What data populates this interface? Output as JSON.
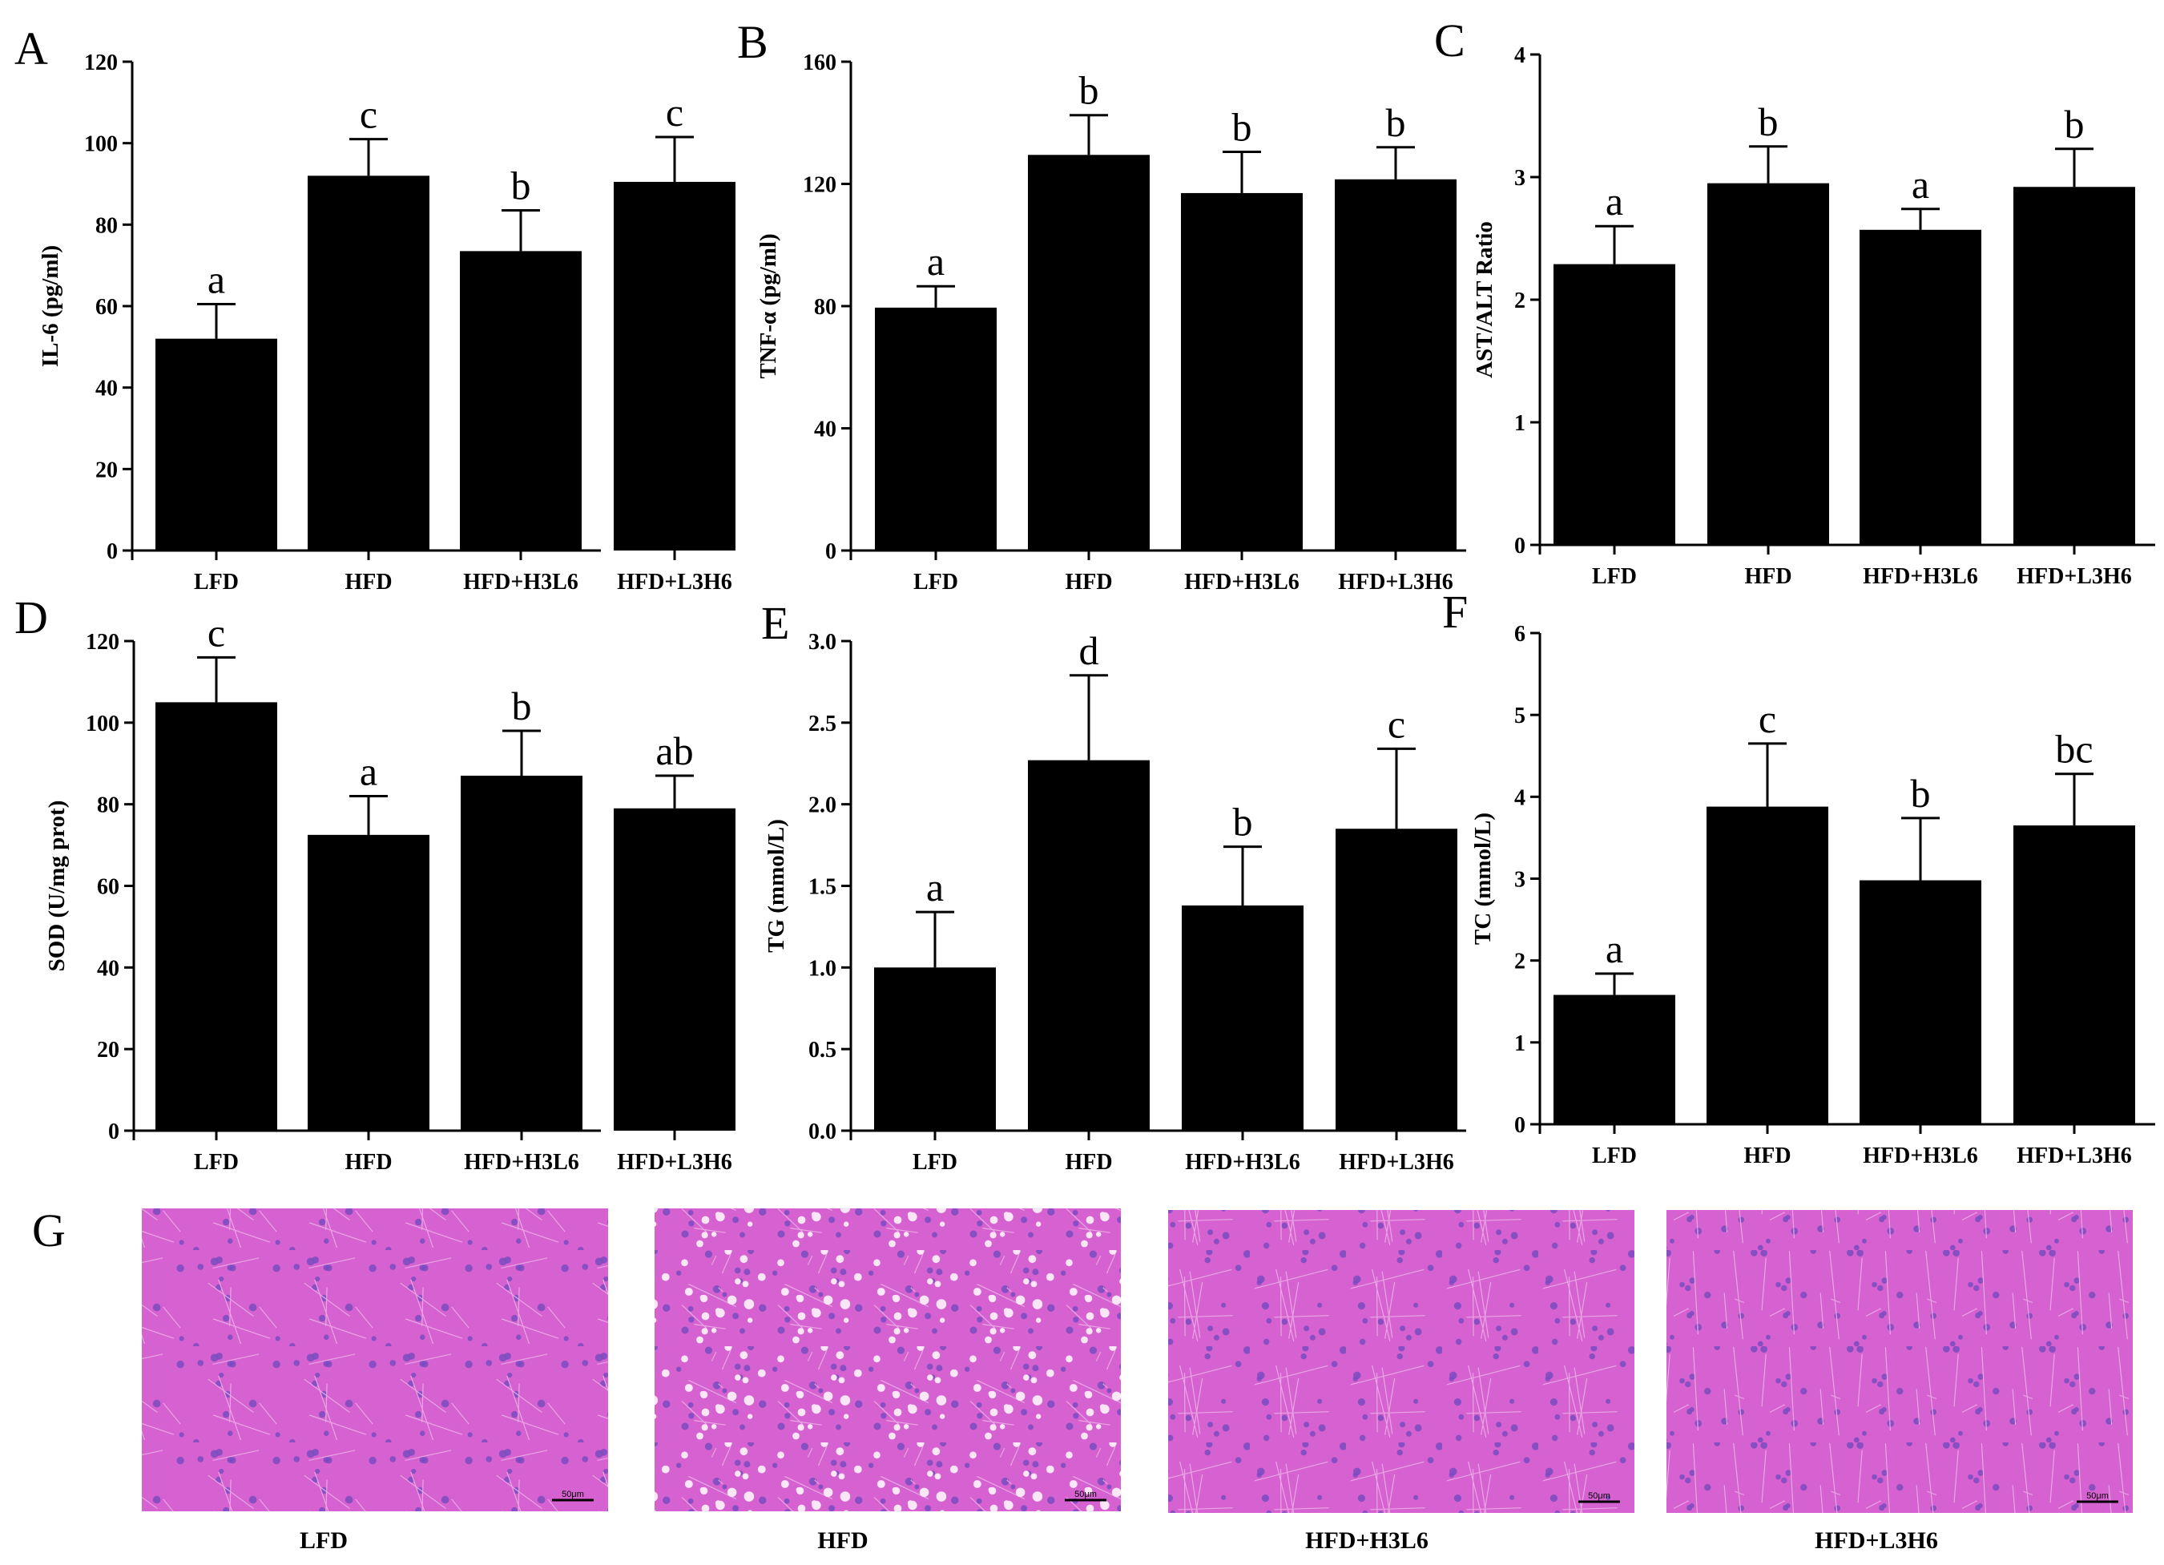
{
  "figure": {
    "histology": {
      "letter": "G",
      "images": [
        {
          "label": "LFD",
          "scale_bar": "50μm",
          "style": "normal"
        },
        {
          "label": "HFD",
          "scale_bar": "50μm",
          "style": "steatosis"
        },
        {
          "label": "HFD+H3L6",
          "scale_bar": "50μm",
          "style": "normal"
        },
        {
          "label": "HFD+L3H6",
          "scale_bar": "50μm",
          "style": "normal"
        }
      ]
    },
    "colors": {
      "bar": "#000000",
      "tissue": "#d661d0",
      "nuclei": "#7a4cc0"
    }
  },
  "chart_data": [
    {
      "letter": "A",
      "type": "bar",
      "ylabel": "IL-6 (pg/ml)",
      "categories": [
        "LFD",
        "HFD",
        "HFD+H3L6",
        "HFD+L3H6"
      ],
      "values": [
        52,
        92,
        73.5,
        90.5
      ],
      "errors": [
        8.5,
        9,
        10,
        11
      ],
      "sig": [
        "a",
        "c",
        "b",
        "c"
      ],
      "ylim": [
        0,
        120
      ],
      "yticks": [
        "0",
        "20",
        "40",
        "60",
        "80",
        "100",
        "120"
      ]
    },
    {
      "letter": "B",
      "type": "bar",
      "ylabel": "TNF-α (pg/ml)",
      "categories": [
        "LFD",
        "HFD",
        "HFD+H3L6",
        "HFD+L3H6"
      ],
      "values": [
        79.5,
        129.5,
        117,
        121.5
      ],
      "errors": [
        7,
        13,
        13.5,
        10.5
      ],
      "sig": [
        "a",
        "b",
        "b",
        "b"
      ],
      "ylim": [
        0,
        160
      ],
      "yticks": [
        "0",
        "40",
        "80",
        "120",
        "160"
      ]
    },
    {
      "letter": "C",
      "type": "bar",
      "ylabel": "AST/ALT Ratio",
      "categories": [
        "LFD",
        "HFD",
        "HFD+H3L6",
        "HFD+L3H6"
      ],
      "values": [
        2.29,
        2.95,
        2.57,
        2.92
      ],
      "errors": [
        0.31,
        0.3,
        0.17,
        0.31
      ],
      "sig": [
        "a",
        "b",
        "a",
        "b"
      ],
      "ylim": [
        0,
        4
      ],
      "yticks": [
        "0",
        "1",
        "2",
        "3",
        "4"
      ]
    },
    {
      "letter": "D",
      "type": "bar",
      "ylabel": "SOD (U/mg prot)",
      "categories": [
        "LFD",
        "HFD",
        "HFD+H3L6",
        "HFD+L3H6"
      ],
      "values": [
        105,
        72.5,
        87,
        79
      ],
      "errors": [
        11,
        9.5,
        11,
        8
      ],
      "sig": [
        "c",
        "a",
        "b",
        "ab"
      ],
      "ylim": [
        0,
        120
      ],
      "yticks": [
        "0",
        "20",
        "40",
        "60",
        "80",
        "100",
        "120"
      ]
    },
    {
      "letter": "E",
      "type": "bar",
      "ylabel": "TG (mmol/L)",
      "categories": [
        "LFD",
        "HFD",
        "HFD+H3L6",
        "HFD+L3H6"
      ],
      "values": [
        1.0,
        2.27,
        1.38,
        1.85
      ],
      "errors": [
        0.34,
        0.52,
        0.36,
        0.49
      ],
      "sig": [
        "a",
        "d",
        "b",
        "c"
      ],
      "ylim": [
        0,
        3.0
      ],
      "yticks": [
        "0.0",
        "0.5",
        "1.0",
        "1.5",
        "2.0",
        "2.5",
        "3.0"
      ]
    },
    {
      "letter": "F",
      "type": "bar",
      "ylabel": "TC (mmol/L)",
      "categories": [
        "LFD",
        "HFD",
        "HFD+H3L6",
        "HFD+L3H6"
      ],
      "values": [
        1.58,
        3.88,
        2.98,
        3.65
      ],
      "errors": [
        0.26,
        0.77,
        0.76,
        0.63
      ],
      "sig": [
        "a",
        "c",
        "b",
        "bc"
      ],
      "ylim": [
        0,
        6
      ],
      "yticks": [
        "0",
        "1",
        "2",
        "3",
        "4",
        "5",
        "6"
      ]
    }
  ]
}
